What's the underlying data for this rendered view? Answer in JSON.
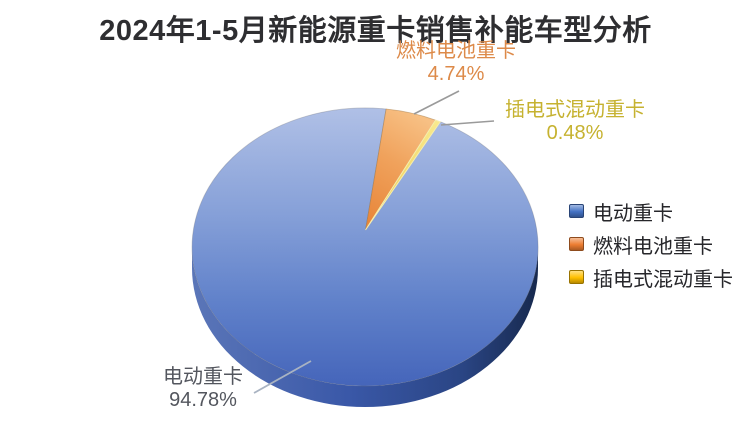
{
  "title": "2024年1-5月新能源重卡销售补能车型分析",
  "chart_data": {
    "type": "pie",
    "style": "3d",
    "title": "2024年1-5月新能源重卡销售补能车型分析",
    "categories": [
      "电动重卡",
      "燃料电池重卡",
      "插电式混动重卡"
    ],
    "values": [
      94.78,
      4.74,
      0.48
    ],
    "slices": [
      {
        "label": "电动重卡",
        "value": 94.78,
        "display": "94.78%",
        "color": "#4472C4",
        "label_color": "#53565e"
      },
      {
        "label": "燃料电池重卡",
        "value": 4.74,
        "display": "4.74%",
        "color": "#ED7D31",
        "label_color": "#dd8a49"
      },
      {
        "label": "插电式混动重卡",
        "value": 0.48,
        "display": "0.48%",
        "color": "#FFC000",
        "label_color": "#c6b230"
      }
    ],
    "start_angle_deg": 7,
    "legend_position": "right",
    "legend": [
      "电动重卡",
      "燃料电池重卡",
      "插电式混动重卡"
    ]
  },
  "callouts": {
    "fuel": {
      "name": "燃料电池重卡",
      "pct": "4.74%"
    },
    "phev": {
      "name": "插电式混动重卡",
      "pct": "0.48%"
    },
    "ev": {
      "name": "电动重卡",
      "pct": "94.78%"
    }
  },
  "legend": {
    "items": [
      {
        "label": "电动重卡",
        "color": "#4472C4"
      },
      {
        "label": "燃料电池重卡",
        "color": "#ED7D31"
      },
      {
        "label": "插电式混动重卡",
        "color": "#FFC000"
      }
    ]
  }
}
